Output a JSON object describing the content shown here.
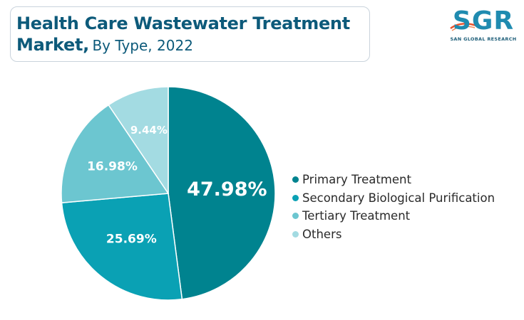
{
  "header": {
    "title_line1": "Health Care Wastewater Treatment",
    "title_line2_bold": "Market,",
    "title_line2_sub": "By Type, 2022"
  },
  "logo": {
    "name": "SGR",
    "tagline": "SAN GLOBAL RESEARCH",
    "colors": {
      "text": "#1f8bb0",
      "swoosh": "#e8542f"
    }
  },
  "chart_data": {
    "type": "pie",
    "title": "Health Care Wastewater Treatment Market, By Type, 2022",
    "slices": [
      {
        "label": "Primary Treatment",
        "value": 47.98,
        "value_label": "47.98%",
        "color": "#00838f"
      },
      {
        "label": "Secondary Biological Purification",
        "value": 25.69,
        "value_label": "25.69%",
        "color": "#0aa1b4"
      },
      {
        "label": "Tertiary Treatment",
        "value": 16.98,
        "value_label": "16.98%",
        "color": "#6cc6d0"
      },
      {
        "label": "Others",
        "value": 9.44,
        "value_label": "9.44%",
        "color": "#a3dbe2"
      }
    ],
    "start_angle": "12 o'clock",
    "direction": "clockwise",
    "legend_position": "right"
  }
}
